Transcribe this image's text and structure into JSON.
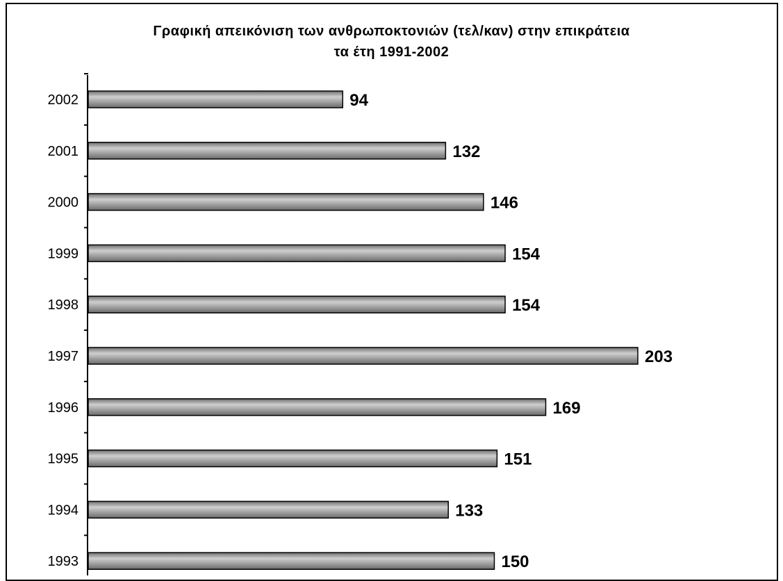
{
  "chart_data": {
    "type": "bar",
    "orientation": "horizontal",
    "title": "Γραφική απεικόνιση των ανθρωποκτονιών (τελ/καν) στην επικράτεια",
    "subtitle": "τα έτη 1991-2002",
    "categories": [
      "2002",
      "2001",
      "2000",
      "1999",
      "1998",
      "1997",
      "1996",
      "1995",
      "1994",
      "1993"
    ],
    "values": [
      94,
      132,
      146,
      154,
      154,
      203,
      169,
      151,
      133,
      150
    ],
    "xlim": [
      0,
      210
    ],
    "grid": false,
    "legend": "none",
    "bar_color": "#9a9a9a",
    "bar_edge_color": "#000000"
  }
}
